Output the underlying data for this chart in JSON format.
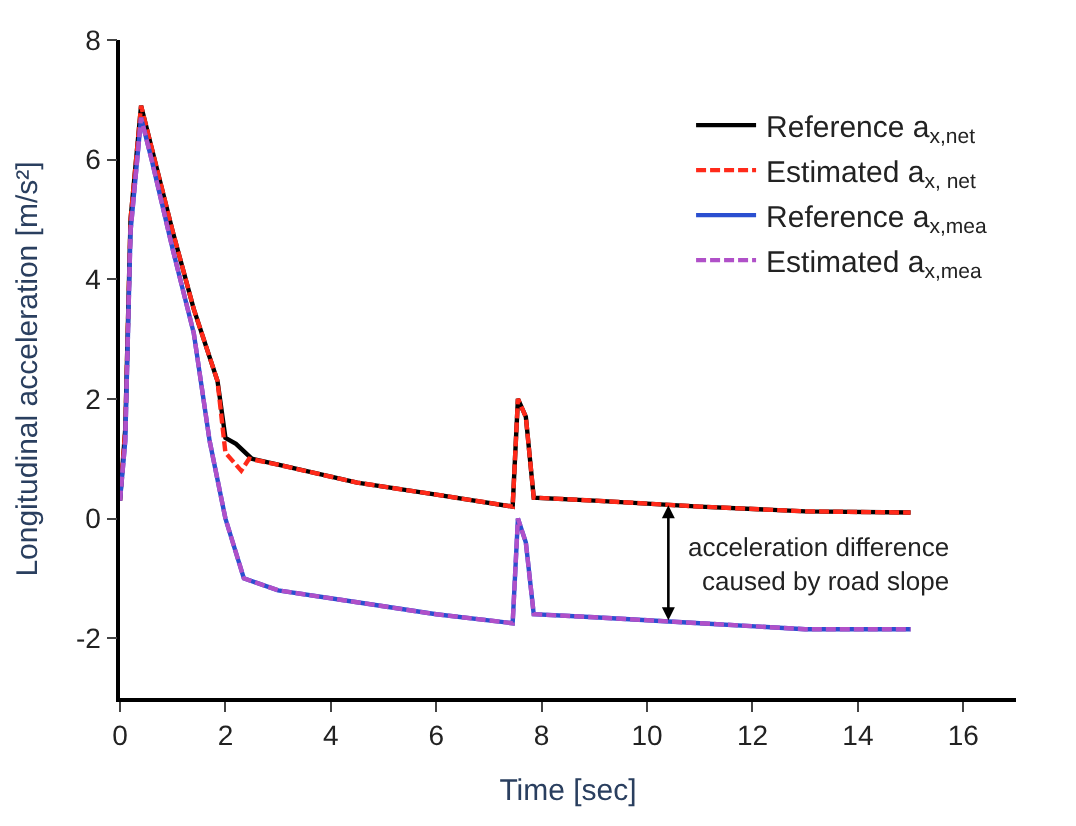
{
  "chart_data": {
    "type": "line",
    "xlabel": "Time [sec]",
    "ylabel": "Longitudinal acceleration [m/s²]",
    "xlim": [
      0,
      17
    ],
    "xticks": [
      0,
      2,
      4,
      6,
      8,
      10,
      12,
      14,
      16
    ],
    "ylim": [
      -3,
      8
    ],
    "yticks": [
      -2,
      0,
      2,
      4,
      6,
      8
    ],
    "legend": "top right",
    "marker": "none",
    "series": [
      {
        "name": "Reference a$_{x,net}$",
        "color": "#000000",
        "line_style": "solid",
        "x": [
          0,
          0.1,
          0.2,
          0.4,
          0.6,
          1.0,
          1.4,
          1.85,
          2.0,
          2.2,
          2.5,
          3,
          4.5,
          6,
          7.45,
          7.55,
          7.7,
          7.85,
          9,
          11,
          13,
          15
        ],
        "values": [
          0.3,
          1.5,
          5.0,
          6.9,
          6.2,
          4.8,
          3.5,
          2.3,
          1.35,
          1.25,
          1.0,
          0.9,
          0.6,
          0.4,
          0.2,
          2.0,
          1.7,
          0.35,
          0.3,
          0.2,
          0.12,
          0.1
        ]
      },
      {
        "name": "Estimated a$_{x, net}$",
        "color": "#ff2a1a",
        "line_style": "dashed",
        "x": [
          0,
          0.1,
          0.2,
          0.4,
          0.6,
          1.0,
          1.4,
          1.85,
          2.0,
          2.3,
          2.45,
          3,
          4.5,
          6,
          7.45,
          7.55,
          7.7,
          7.85,
          9,
          11,
          13,
          15
        ],
        "values": [
          0.3,
          1.5,
          5.0,
          6.9,
          6.2,
          4.8,
          3.5,
          2.3,
          1.1,
          0.8,
          1.0,
          0.9,
          0.6,
          0.4,
          0.2,
          2.0,
          1.7,
          0.35,
          0.3,
          0.2,
          0.12,
          0.1
        ]
      },
      {
        "name": "Reference a$_{x,mea}$",
        "color": "#2a4fd0",
        "line_style": "solid",
        "x": [
          0,
          0.1,
          0.2,
          0.4,
          0.6,
          1.0,
          1.4,
          1.7,
          2.0,
          2.35,
          3,
          4.5,
          6,
          7.45,
          7.55,
          7.7,
          7.85,
          9,
          11,
          13,
          15
        ],
        "values": [
          0.3,
          1.3,
          4.8,
          6.7,
          6.0,
          4.5,
          3.1,
          1.3,
          0.0,
          -1.0,
          -1.2,
          -1.4,
          -1.6,
          -1.75,
          0.0,
          -0.4,
          -1.6,
          -1.65,
          -1.75,
          -1.85,
          -1.85
        ]
      },
      {
        "name": "Estimated a$_{x,mea}$",
        "color": "#b050c8",
        "line_style": "dashed",
        "x": [
          0,
          0.1,
          0.2,
          0.4,
          0.6,
          1.0,
          1.4,
          1.7,
          2.0,
          2.35,
          3,
          4.5,
          6,
          7.45,
          7.55,
          7.7,
          7.85,
          9,
          11,
          13,
          15
        ],
        "values": [
          0.3,
          1.3,
          4.8,
          6.7,
          6.0,
          4.5,
          3.1,
          1.3,
          0.0,
          -1.0,
          -1.2,
          -1.4,
          -1.6,
          -1.75,
          0.0,
          -0.4,
          -1.6,
          -1.65,
          -1.75,
          -1.85,
          -1.85
        ]
      }
    ],
    "annotations": [
      "acceleration difference\ncaused by road slope"
    ]
  }
}
